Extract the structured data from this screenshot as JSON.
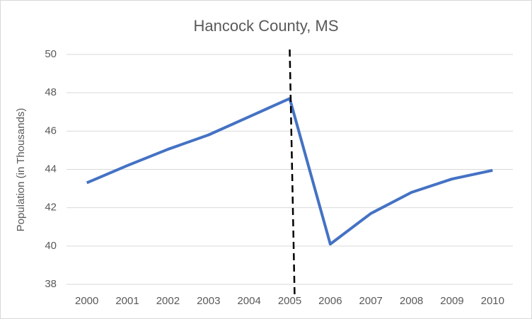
{
  "chart_data": {
    "type": "line",
    "title": "Hancock County, MS",
    "y_label": "Population (in Thousands)",
    "categories": [
      "2000",
      "2001",
      "2002",
      "2003",
      "2004",
      "2005",
      "2006",
      "2007",
      "2008",
      "2009",
      "2010"
    ],
    "series": [
      {
        "name": "Population",
        "color": "#4472c4",
        "values": [
          43.3,
          44.2,
          45.05,
          45.8,
          46.75,
          47.7,
          40.1,
          41.7,
          42.8,
          43.5,
          43.95
        ]
      }
    ],
    "ylim": [
      38,
      50
    ],
    "yticks": [
      38,
      40,
      42,
      44,
      46,
      48,
      50
    ],
    "grid": true,
    "vline": "2005"
  }
}
